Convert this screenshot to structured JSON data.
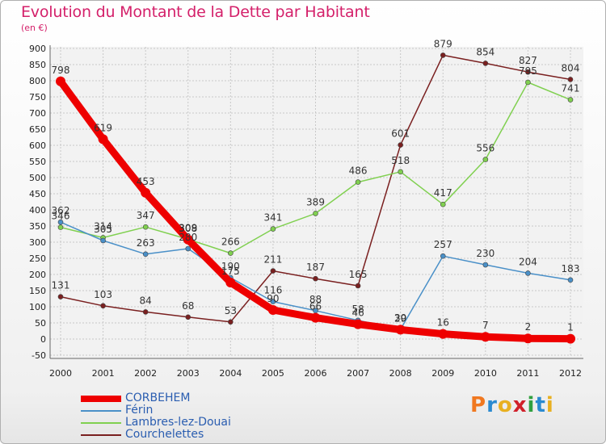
{
  "title": "Evolution du Montant de la Dette par Habitant",
  "subtitle": "(en €)",
  "logo_text": "Proxiti",
  "chart_data": {
    "type": "line",
    "title": "Evolution du Montant de la Dette par Habitant",
    "subtitle": "(en €)",
    "x": [
      "2000",
      "2001",
      "2002",
      "2003",
      "2004",
      "2005",
      "2006",
      "2007",
      "2008",
      "2009",
      "2010",
      "2011",
      "2012"
    ],
    "ylim": [
      -50,
      900
    ],
    "yticks": [
      -50,
      0,
      50,
      100,
      150,
      200,
      250,
      300,
      350,
      400,
      450,
      500,
      550,
      600,
      650,
      700,
      750,
      800,
      850,
      900
    ],
    "grid": true,
    "legend": "bottom-left",
    "series": [
      {
        "name": "CORBEHEM",
        "color": "#ee0000",
        "values": [
          798,
          619,
          453,
          308,
          175,
          90,
          66,
          46,
          29,
          16,
          7,
          2,
          1
        ]
      },
      {
        "name": "Férin",
        "color": "#4a90c8",
        "values": [
          362,
          305,
          263,
          280,
          190,
          116,
          88,
          58,
          30,
          257,
          230,
          204,
          183
        ]
      },
      {
        "name": "Lambres-lez-Douai",
        "color": "#80d050",
        "values": [
          346,
          314,
          347,
          309,
          266,
          341,
          389,
          486,
          518,
          417,
          556,
          795,
          741
        ]
      },
      {
        "name": "Courchelettes",
        "color": "#7a2020",
        "values": [
          131,
          103,
          84,
          68,
          53,
          211,
          187,
          165,
          601,
          879,
          854,
          827,
          804
        ]
      }
    ]
  }
}
